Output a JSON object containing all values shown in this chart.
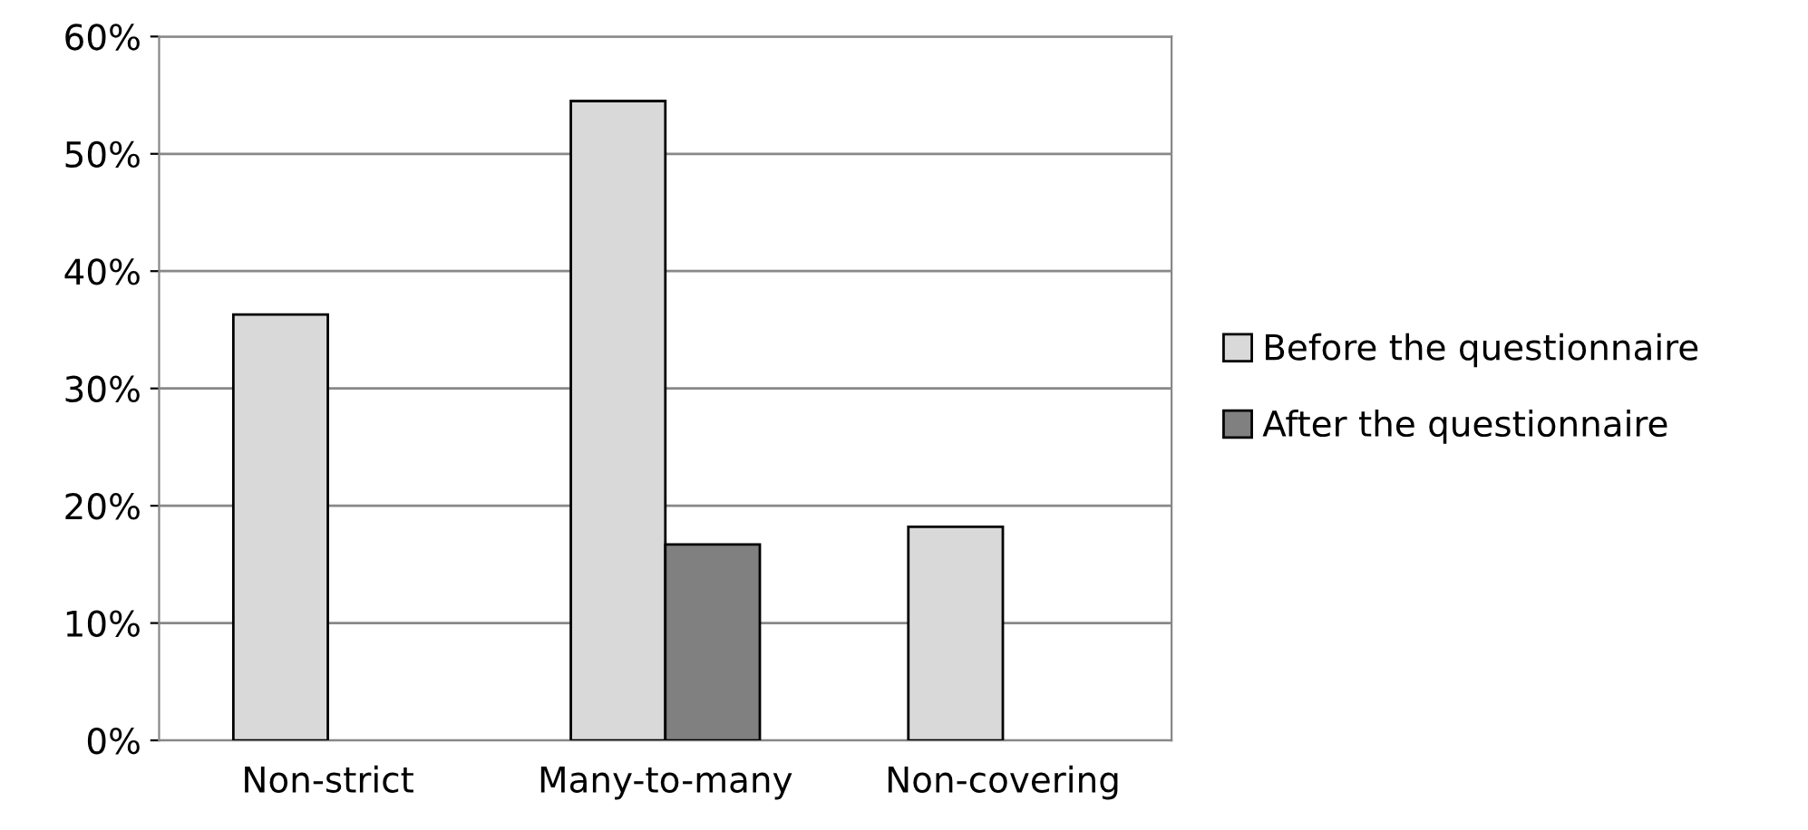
{
  "chart_data": {
    "type": "bar",
    "categories": [
      "Non-strict",
      "Many-to-many",
      "Non-covering"
    ],
    "series": [
      {
        "name": "Before the questionnaire",
        "color": "#d9d9d9",
        "values": [
          36.3,
          54.5,
          18.2
        ]
      },
      {
        "name": "After the questionnaire",
        "color": "#808080",
        "values": [
          null,
          16.7,
          null
        ]
      }
    ],
    "ylim": [
      0,
      60
    ],
    "yticks": [
      {
        "value": 0,
        "label": "0%"
      },
      {
        "value": 10,
        "label": "10%"
      },
      {
        "value": 20,
        "label": "20%"
      },
      {
        "value": 30,
        "label": "30%"
      },
      {
        "value": 40,
        "label": "40%"
      },
      {
        "value": 50,
        "label": "50%"
      },
      {
        "value": 60,
        "label": "60%"
      }
    ],
    "grid": "y",
    "legend": "right"
  }
}
